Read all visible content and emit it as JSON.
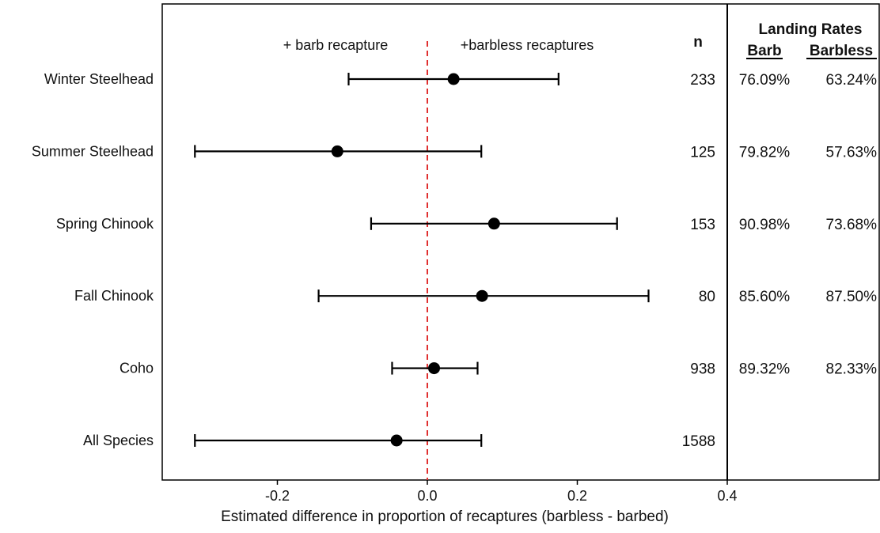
{
  "chart_data": {
    "type": "scatter",
    "subtype": "forest-plot",
    "xlabel": "Estimated difference in proportion of recaptures (barbless - barbed)",
    "xlim": [
      -0.35,
      0.4
    ],
    "xticks": [
      -0.2,
      0.0,
      0.2,
      0.4
    ],
    "xtick_labels": [
      "-0.2",
      "0.0",
      "0.2",
      "0.4"
    ],
    "reference_line": {
      "x": 0.0,
      "style": "dashed",
      "color": "#e03030"
    },
    "annotations": {
      "left": "+ barb recapture",
      "right": "+barbless recaptures"
    },
    "n_header": "n",
    "table_title": "Landing Rates",
    "table_columns": [
      "Barb",
      "Barbless"
    ],
    "rows": [
      {
        "label": "Winter Steelhead",
        "estimate": 0.035,
        "lower": -0.105,
        "upper": 0.175,
        "n": "233",
        "barb": "76.09%",
        "barbless": "63.24%"
      },
      {
        "label": "Summer Steelhead",
        "estimate": -0.12,
        "lower": -0.31,
        "upper": 0.072,
        "n": "125",
        "barb": "79.82%",
        "barbless": "57.63%"
      },
      {
        "label": "Spring Chinook",
        "estimate": 0.089,
        "lower": -0.075,
        "upper": 0.253,
        "n": "153",
        "barb": "90.98%",
        "barbless": "73.68%"
      },
      {
        "label": "Fall Chinook",
        "estimate": 0.073,
        "lower": -0.145,
        "upper": 0.295,
        "n": "80",
        "barb": "85.60%",
        "barbless": "87.50%"
      },
      {
        "label": "Coho",
        "estimate": 0.009,
        "lower": -0.047,
        "upper": 0.067,
        "n": "938",
        "barb": "89.32%",
        "barbless": "82.33%"
      },
      {
        "label": "All Species",
        "estimate": -0.041,
        "lower": -0.31,
        "upper": 0.072,
        "n": "1588",
        "barb": "",
        "barbless": ""
      }
    ],
    "colors": {
      "marker": "#000000",
      "errorbar": "#000000",
      "reference": "#e03030",
      "frame": "#000000"
    }
  }
}
